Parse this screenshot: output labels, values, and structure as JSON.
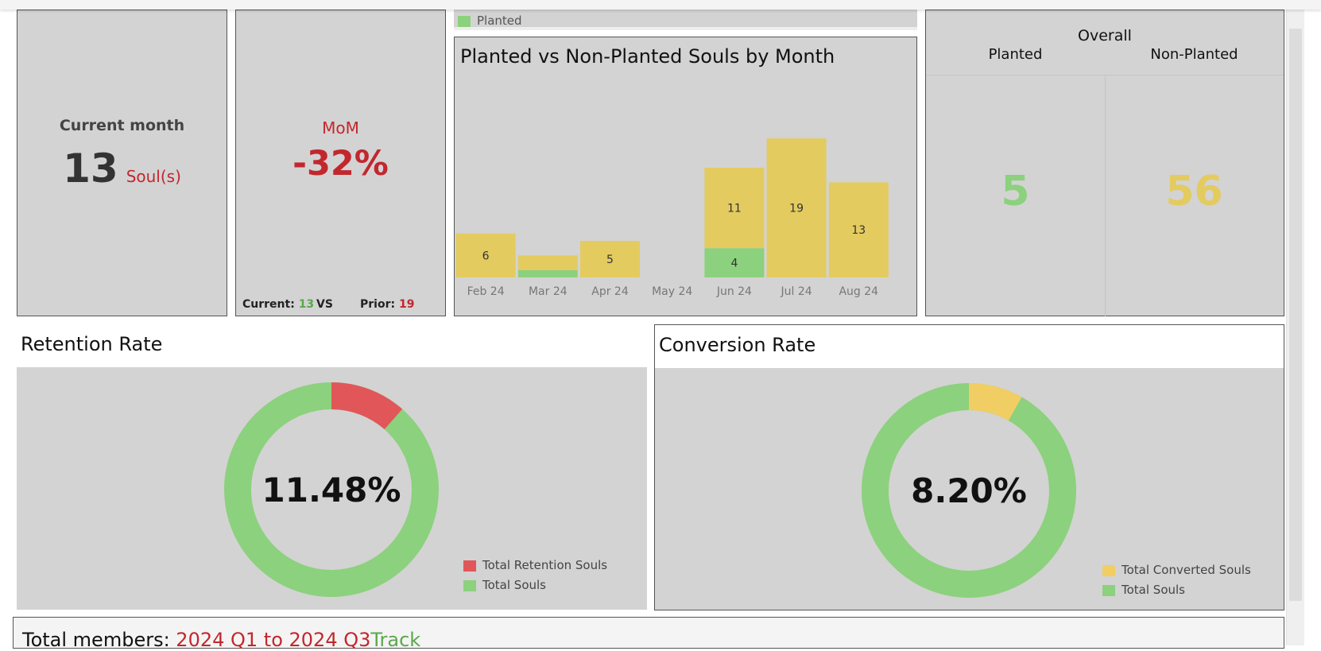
{
  "colors": {
    "planted": "#8cd17d",
    "non_planted": "#e3cb5f",
    "red": "#c2272d",
    "retention": "#e15759",
    "converted": "#f1ce63",
    "panel_bg": "#d3d3d3"
  },
  "current_month": {
    "label": "Current month",
    "value": "13",
    "unit": "Soul(s)"
  },
  "mom": {
    "label": "MoM",
    "value": "-32%",
    "current_label": "Current:",
    "current_value": "13",
    "vs_label": "VS",
    "prior_label": "Prior:",
    "prior_value": "19"
  },
  "legend_strip": {
    "planted_label": "Planted"
  },
  "bar_chart": {
    "title": "Planted vs Non-Planted Souls by Month"
  },
  "chart_data": {
    "type": "bar",
    "stacked": true,
    "title": "Planted vs Non-Planted Souls by Month",
    "categories": [
      "Feb 24",
      "Mar 24",
      "Apr 24",
      "May 24",
      "Jun 24",
      "Jul 24",
      "Aug 24"
    ],
    "series": [
      {
        "name": "Planted",
        "color": "#8cd17d",
        "values": [
          0,
          1,
          0,
          0,
          4,
          0,
          0
        ],
        "labels": [
          "",
          "",
          "",
          "",
          "4",
          "",
          ""
        ]
      },
      {
        "name": "Non-Planted",
        "color": "#e3cb5f",
        "values": [
          6,
          2,
          5,
          0,
          11,
          19,
          13
        ],
        "labels": [
          "6",
          "",
          "5",
          "",
          "11",
          "19",
          "13"
        ]
      }
    ],
    "ylim": [
      0,
      24
    ],
    "grid": false
  },
  "overall": {
    "title": "Overall",
    "planted_label": "Planted",
    "non_planted_label": "Non-Planted",
    "planted_value": "5",
    "non_planted_value": "56"
  },
  "retention": {
    "title": "Retention Rate",
    "value_text": "11.48%",
    "fraction": 0.1148,
    "legend": [
      "Total Retention Souls",
      "Total Souls"
    ]
  },
  "conversion": {
    "title": "Conversion Rate",
    "value_text": "8.20%",
    "fraction": 0.082,
    "legend": [
      "Total Converted Souls",
      "Total Souls"
    ]
  },
  "members": {
    "label": "Total members: ",
    "range": "2024 Q1 to 2024 Q3",
    "track": "Track"
  }
}
